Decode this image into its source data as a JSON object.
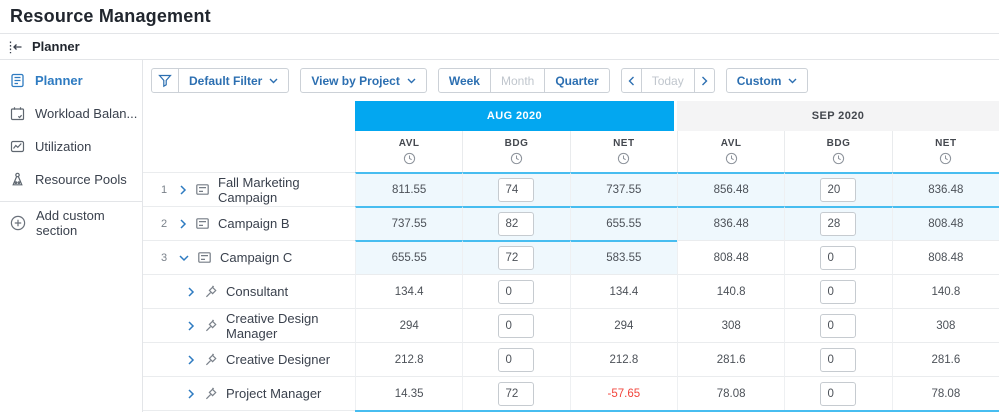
{
  "app": {
    "title": "Resource Management"
  },
  "breadcrumb": {
    "label": "Planner"
  },
  "sidebar": {
    "items": [
      {
        "label": "Planner",
        "icon": "planner-icon",
        "active": true
      },
      {
        "label": "Workload Balan...",
        "icon": "workload-balancer-icon",
        "active": false
      },
      {
        "label": "Utilization",
        "icon": "utilization-icon",
        "active": false
      },
      {
        "label": "Resource Pools",
        "icon": "resource-pools-icon",
        "active": false
      }
    ],
    "add_section_label": "Add custom section"
  },
  "toolbar": {
    "filter_icon": "funnel-icon",
    "filter_label": "Default Filter",
    "view_label": "View by Project",
    "range_buttons": [
      {
        "label": "Week",
        "disabled": false
      },
      {
        "label": "Month",
        "disabled": true
      },
      {
        "label": "Quarter",
        "disabled": false
      }
    ],
    "prev_label": "‹",
    "today_label": "Today",
    "next_label": "›",
    "custom_label": "Custom"
  },
  "table": {
    "months": [
      {
        "label": "AUG 2020",
        "highlighted": true
      },
      {
        "label": "SEP 2020",
        "highlighted": false
      }
    ],
    "subcolumns": [
      "AVL",
      "BDG",
      "NET"
    ],
    "subcolumn_icon": "clock-icon",
    "rows": [
      {
        "num": "1",
        "name": "Fall Marketing Campaign",
        "type": "project",
        "expanded": false,
        "aug": {
          "avl": "811.55",
          "bdg": "74",
          "net": "737.55",
          "tint": true
        },
        "sep": {
          "avl": "856.48",
          "bdg": "20",
          "net": "836.48",
          "tint": true
        }
      },
      {
        "num": "2",
        "name": "Campaign B",
        "type": "project",
        "expanded": false,
        "aug": {
          "avl": "737.55",
          "bdg": "82",
          "net": "655.55",
          "tint": true
        },
        "sep": {
          "avl": "836.48",
          "bdg": "28",
          "net": "808.48",
          "tint": true
        }
      },
      {
        "num": "3",
        "name": "Campaign C",
        "type": "project",
        "expanded": true,
        "aug": {
          "avl": "655.55",
          "bdg": "72",
          "net": "583.55",
          "tint": true
        },
        "sep": {
          "avl": "808.48",
          "bdg": "0",
          "net": "808.48",
          "tint": false
        }
      },
      {
        "num": "",
        "name": "Consultant",
        "type": "role",
        "expanded": false,
        "aug": {
          "avl": "134.4",
          "bdg": "0",
          "net": "134.4",
          "tint": false
        },
        "sep": {
          "avl": "140.8",
          "bdg": "0",
          "net": "140.8",
          "tint": false
        }
      },
      {
        "num": "",
        "name": "Creative Design Manager",
        "type": "role",
        "expanded": false,
        "aug": {
          "avl": "294",
          "bdg": "0",
          "net": "294",
          "tint": false
        },
        "sep": {
          "avl": "308",
          "bdg": "0",
          "net": "308",
          "tint": false
        }
      },
      {
        "num": "",
        "name": "Creative Designer",
        "type": "role",
        "expanded": false,
        "aug": {
          "avl": "212.8",
          "bdg": "0",
          "net": "212.8",
          "tint": false
        },
        "sep": {
          "avl": "281.6",
          "bdg": "0",
          "net": "281.6",
          "tint": false
        }
      },
      {
        "num": "",
        "name": "Project Manager",
        "type": "role",
        "expanded": false,
        "aug": {
          "avl": "14.35",
          "bdg": "72",
          "net": "-57.65",
          "tint": false
        },
        "sep": {
          "avl": "78.08",
          "bdg": "0",
          "net": "78.08",
          "tint": false
        }
      }
    ]
  },
  "colors": {
    "accent_blue": "#2c6fb1",
    "month_highlight": "#03a7f0",
    "row_highlight_border": "#47bdf0",
    "row_highlight_bg": "#eff8fd",
    "negative_value": "#f2463d"
  }
}
